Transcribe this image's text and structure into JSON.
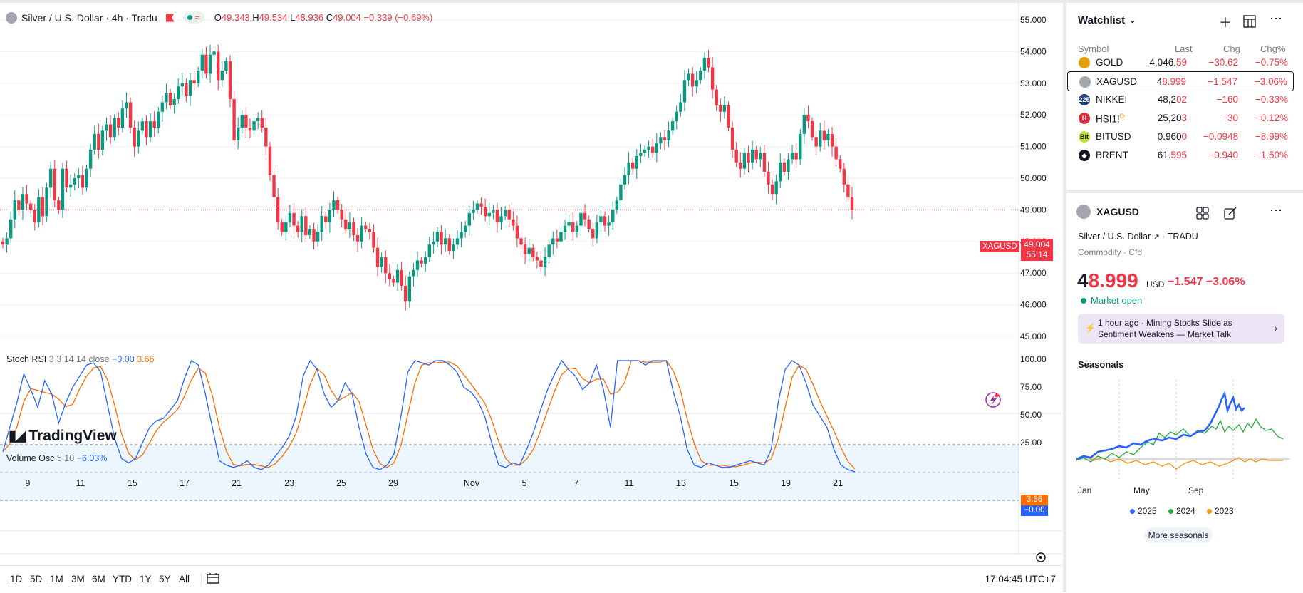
{
  "header": {
    "symbol_title": "Silver / U.S. Dollar · 4h · Tradu",
    "open_label": "O",
    "open": "49.343",
    "high_label": "H",
    "high": "49.534",
    "low_label": "L",
    "low": "48.936",
    "close_label": "C",
    "close": "49.004",
    "change": "−0.339 (−0.69%)",
    "pill_wave": "≈"
  },
  "price_axis": {
    "ticks": [
      "55.000",
      "54.000",
      "53.000",
      "52.000",
      "51.000",
      "50.000",
      "49.000",
      "48.000",
      "47.000",
      "46.000",
      "45.000"
    ],
    "current_price": "49.004",
    "countdown": "55:14",
    "symbol_tag": "XAGUSD"
  },
  "stoch": {
    "name": "Stoch RSI",
    "params": "3 3 14 14 close",
    "k_value": "−0.00",
    "d_value": "3.66",
    "ticks": [
      "100.00",
      "75.00",
      "50.00",
      "25.00"
    ],
    "k_badge": "−0.00",
    "d_badge": "3.66"
  },
  "volume_osc": {
    "name": "Volume Osc",
    "params": "5 10",
    "value": "−6.03%"
  },
  "time_axis": [
    "9",
    "11",
    "15",
    "17",
    "21",
    "23",
    "25",
    "29",
    "Nov",
    "5",
    "7",
    "11",
    "13",
    "15",
    "19",
    "21"
  ],
  "branding": {
    "logo_text": "TradingView"
  },
  "timeframes": [
    "1D",
    "5D",
    "1M",
    "3M",
    "6M",
    "YTD",
    "1Y",
    "5Y",
    "All"
  ],
  "clock": "17:04:45 UTC+7",
  "watchlist": {
    "title": "Watchlist",
    "columns": {
      "symbol": "Symbol",
      "last": "Last",
      "chg": "Chg",
      "chgp": "Chg%"
    },
    "rows": [
      {
        "symbol": "GOLD",
        "last_main": "4,046.",
        "last_hl": "59",
        "chg": "−30.62",
        "chgp": "−0.75%",
        "icon_color": "#e3a008",
        "icon": ""
      },
      {
        "symbol": "XAGUSD",
        "last_main": "4",
        "last_hl": "8.999",
        "chg": "−1.547",
        "chgp": "−3.06%",
        "icon_color": "#a3a6af",
        "icon": ""
      },
      {
        "symbol": "NIKKEI",
        "last_main": "48,2",
        "last_hl": "02",
        "chg": "−160",
        "chgp": "−0.33%",
        "icon_color": "#1e3f7a",
        "icon": "225"
      },
      {
        "symbol": "HSI1!",
        "last_main": "25,20",
        "last_hl": "3",
        "chg": "−30",
        "chgp": "−0.12%",
        "icon_color": "#e02b3a",
        "icon": "H"
      },
      {
        "symbol": "BITUSD",
        "last_main": "0.960",
        "last_hl": "0",
        "chg": "−0.0948",
        "chgp": "−8.99%",
        "icon_color": "#b6e02b",
        "icon": "Bit"
      },
      {
        "symbol": "BRENT",
        "last_main": "61.",
        "last_hl": "595",
        "chg": "−0.940",
        "chgp": "−1.50%",
        "icon_color": "#131722",
        "icon": "◆"
      }
    ],
    "hsi_badge": "D"
  },
  "details": {
    "symbol": "XAGUSD",
    "full_name": "Silver / U.S. Dollar",
    "exchange": "TRADU",
    "type": "Commodity · Cfd",
    "price_main": "4",
    "price_hl": "8.999",
    "currency": "USD",
    "change": "−1.547  −3.06%",
    "market_status": "Market open",
    "news_ago": "1 hour ago",
    "news_headline_1": "· Mining Stocks Slide as",
    "news_headline_2": "Sentiment Weakens — Market Talk"
  },
  "seasonals": {
    "title": "Seasonals",
    "x_labels": [
      "Jan",
      "May",
      "Sep"
    ],
    "legend": [
      {
        "label": "2025",
        "color": "#2962ff"
      },
      {
        "label": "2024",
        "color": "#22ab3a"
      },
      {
        "label": "2023",
        "color": "#f0960c"
      }
    ],
    "more_label": "More seasonals"
  },
  "chart_data": {
    "type": "candlestick",
    "title": "Silver / U.S. Dollar · 4h · Tradu",
    "ylim": [
      45,
      55
    ],
    "up_color": "#089981",
    "down_color": "#f23645",
    "closes": [
      47.9,
      48.1,
      48.7,
      49.3,
      49.0,
      49.5,
      49.2,
      49.0,
      48.6,
      49.4,
      48.8,
      49.7,
      50.3,
      49.3,
      49.0,
      50.3,
      49.7,
      49.8,
      50.0,
      50.1,
      49.7,
      50.3,
      50.9,
      51.4,
      50.9,
      51.5,
      51.7,
      51.3,
      51.9,
      51.6,
      52.2,
      52.4,
      51.6,
      51.0,
      51.5,
      51.8,
      51.3,
      51.8,
      51.6,
      52.1,
      52.4,
      52.7,
      52.3,
      52.5,
      52.9,
      53.0,
      52.6,
      53.1,
      53.0,
      53.4,
      53.9,
      53.3,
      53.9,
      54.0,
      53.1,
      53.4,
      53.7,
      52.5,
      51.2,
      51.6,
      52.0,
      51.6,
      51.5,
      51.8,
      51.9,
      51.6,
      51.0,
      50.1,
      49.4,
      48.6,
      48.3,
      48.6,
      48.9,
      48.5,
      48.3,
      48.8,
      48.2,
      48.4,
      48.0,
      48.3,
      48.8,
      48.6,
      49.0,
      49.3,
      49.0,
      48.7,
      48.4,
      48.6,
      48.2,
      48.0,
      48.5,
      48.4,
      48.3,
      47.8,
      47.2,
      47.5,
      47.0,
      46.8,
      46.7,
      47.1,
      46.6,
      46.1,
      46.9,
      47.1,
      47.4,
      47.3,
      47.5,
      47.9,
      48.0,
      48.3,
      47.9,
      48.1,
      47.7,
      47.9,
      48.1,
      48.3,
      48.5,
      48.9,
      49.0,
      49.2,
      49.1,
      48.8,
      48.9,
      49.0,
      48.6,
      48.8,
      49.0,
      48.7,
      48.5,
      48.1,
      47.9,
      47.6,
      47.8,
      47.5,
      47.4,
      47.2,
      47.5,
      47.9,
      48.1,
      48.0,
      48.3,
      48.5,
      48.6,
      48.3,
      48.5,
      48.9,
      48.7,
      48.4,
      48.1,
      48.6,
      48.8,
      48.5,
      48.6,
      49.0,
      49.3,
      49.8,
      50.1,
      50.5,
      50.3,
      50.7,
      50.8,
      50.9,
      51.0,
      50.8,
      51.1,
      51.3,
      51.2,
      51.5,
      51.8,
      52.1,
      52.4,
      53.1,
      53.3,
      52.9,
      53.1,
      53.4,
      53.8,
      53.5,
      52.8,
      52.3,
      52.1,
      52.3,
      51.6,
      50.9,
      50.5,
      50.3,
      50.8,
      50.5,
      50.9,
      50.6,
      50.8,
      50.2,
      49.8,
      49.5,
      49.9,
      50.5,
      50.2,
      50.6,
      50.8,
      50.6,
      51.4,
      52.0,
      51.8,
      51.3,
      51.0,
      51.5,
      51.2,
      51.4,
      51.0,
      50.6,
      50.3,
      49.8,
      49.4,
      49.0
    ]
  }
}
